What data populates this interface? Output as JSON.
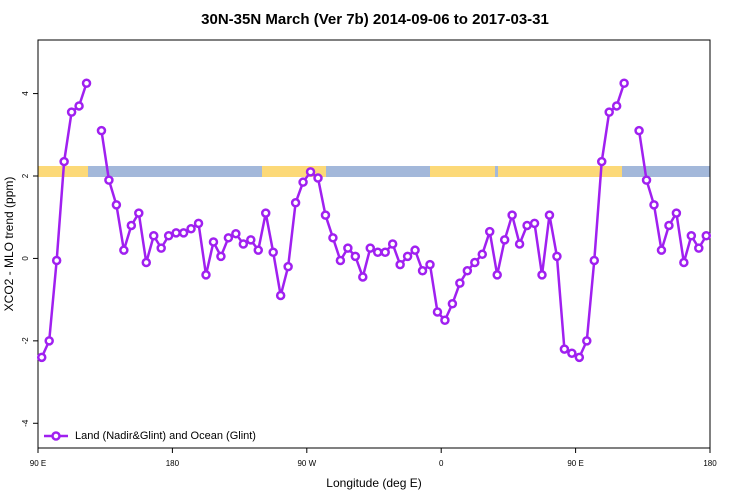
{
  "chart_data": {
    "type": "line",
    "title": "30N-35N March (Ver 7b)   2014-09-06 to 2017-03-31",
    "x_label": "Longitude (deg E)",
    "y_label": "XCO2 - MLO trend (ppm)",
    "xlim": [
      90,
      540
    ],
    "xticks": [
      {
        "value": 90,
        "label": "90 E"
      },
      {
        "value": 180,
        "label": "180"
      },
      {
        "value": 270,
        "label": "90 W"
      },
      {
        "value": 360,
        "label": "0"
      },
      {
        "value": 450,
        "label": "90 E"
      },
      {
        "value": 540,
        "label": "180"
      }
    ],
    "ylim": [
      -4.6,
      5.3
    ],
    "yticks": [
      -4,
      -2,
      0,
      2,
      4
    ],
    "legend": "bottom-left",
    "x": [
      92.5,
      97.5,
      102.5,
      107.5,
      112.5,
      117.5,
      122.5,
      127.5,
      132.5,
      137.5,
      142.5,
      147.5,
      152.5,
      157.5,
      162.5,
      167.5,
      172.5,
      177.5,
      182.5,
      187.5,
      192.5,
      197.5,
      202.5,
      207.5,
      212.5,
      217.5,
      222.5,
      227.5,
      232.5,
      237.5,
      242.5,
      247.5,
      252.5,
      257.5,
      262.5,
      267.5,
      272.5,
      277.5,
      282.5,
      287.5,
      292.5,
      297.5,
      302.5,
      307.5,
      312.5,
      317.5,
      322.5,
      327.5,
      332.5,
      337.5,
      342.5,
      347.5,
      352.5,
      357.5,
      362.5,
      367.5,
      372.5,
      377.5,
      382.5,
      387.5,
      392.5,
      397.5,
      402.5,
      407.5,
      412.5,
      417.5,
      422.5,
      427.5,
      432.5,
      437.5,
      442.5,
      447.5,
      452.5,
      457.5,
      462.5,
      467.5,
      472.5,
      477.5,
      482.5,
      487.5,
      492.5,
      497.5,
      502.5,
      507.5,
      512.5,
      517.5,
      522.5,
      527.5,
      532.5,
      537.5
    ],
    "series": [
      {
        "name": "Land (Nadir&Glint) and Ocean (Glint)",
        "color": "#a020f0",
        "values": [
          -2.4,
          -2.0,
          -0.05,
          2.35,
          3.55,
          3.7,
          4.25,
          null,
          3.1,
          1.9,
          1.3,
          0.2,
          0.8,
          1.1,
          -0.1,
          0.55,
          0.25,
          0.55,
          0.62,
          0.62,
          0.72,
          0.85,
          -0.4,
          0.4,
          0.05,
          0.5,
          0.6,
          0.35,
          0.45,
          0.2,
          1.1,
          0.15,
          -0.9,
          -0.2,
          1.35,
          1.85,
          2.1,
          1.95,
          1.05,
          0.5,
          -0.05,
          0.25,
          0.05,
          -0.45,
          0.25,
          0.15,
          0.15,
          0.35,
          -0.15,
          0.05,
          0.2,
          -0.3,
          -0.15,
          -1.3,
          -1.5,
          -1.1,
          -0.6,
          -0.3,
          -0.1,
          0.1,
          0.65,
          -0.4,
          0.45,
          1.05,
          0.35,
          0.8,
          0.85,
          -0.4,
          1.05,
          0.05,
          -2.2,
          -2.3,
          -2.4,
          -2.0,
          -0.05,
          2.35,
          3.55,
          3.7,
          4.25,
          null,
          3.1,
          1.9,
          1.3,
          0.2,
          0.8,
          1.1,
          -0.1,
          0.55,
          0.25,
          0.55
        ]
      }
    ]
  }
}
